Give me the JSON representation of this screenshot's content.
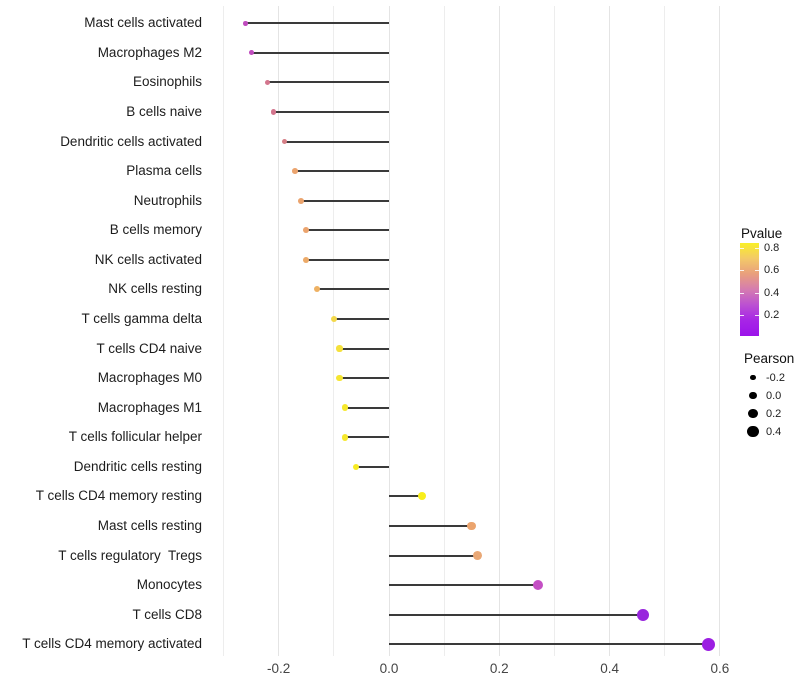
{
  "chart_data": {
    "type": "scatter",
    "subtype": "lollipop",
    "title": "",
    "xlabel": "",
    "ylabel": "",
    "xlim": [
      -0.3,
      0.65
    ],
    "grid": "on",
    "x_axis": {
      "ticks": [
        {
          "value": -0.2,
          "label": "-0.2"
        },
        {
          "value": 0.0,
          "label": "0.0"
        },
        {
          "value": 0.2,
          "label": "0.2"
        },
        {
          "value": 0.4,
          "label": "0.4"
        },
        {
          "value": 0.6,
          "label": "0.6"
        }
      ],
      "gridline_values": [
        -0.3,
        -0.2,
        -0.1,
        0.0,
        0.1,
        0.2,
        0.3,
        0.4,
        0.5,
        0.6
      ]
    },
    "rows": [
      {
        "label": "Mast cells activated",
        "pearson": -0.26,
        "pvalue_approx": 0.3,
        "color": "#c04cbe"
      },
      {
        "label": "Macrophages M2",
        "pearson": -0.25,
        "pvalue_approx": 0.3,
        "color": "#c04cbe"
      },
      {
        "label": "Eosinophils",
        "pearson": -0.22,
        "pvalue_approx": 0.4,
        "color": "#d3758d"
      },
      {
        "label": "B cells naive",
        "pearson": -0.21,
        "pvalue_approx": 0.42,
        "color": "#d3758d"
      },
      {
        "label": "Dendritic cells activated",
        "pearson": -0.19,
        "pvalue_approx": 0.45,
        "color": "#d67e86"
      },
      {
        "label": "Plasma cells",
        "pearson": -0.17,
        "pvalue_approx": 0.55,
        "color": "#eba46e"
      },
      {
        "label": "Neutrophils",
        "pearson": -0.16,
        "pvalue_approx": 0.55,
        "color": "#eba46e"
      },
      {
        "label": "B cells memory",
        "pearson": -0.15,
        "pvalue_approx": 0.55,
        "color": "#eba46e"
      },
      {
        "label": "NK cells activated",
        "pearson": -0.15,
        "pvalue_approx": 0.57,
        "color": "#ecaa69"
      },
      {
        "label": "NK cells resting",
        "pearson": -0.13,
        "pvalue_approx": 0.6,
        "color": "#eeb163"
      },
      {
        "label": "T cells gamma delta",
        "pearson": -0.1,
        "pvalue_approx": 0.7,
        "color": "#f3d84a"
      },
      {
        "label": "T cells CD4 naive",
        "pearson": -0.09,
        "pvalue_approx": 0.72,
        "color": "#f5e13c"
      },
      {
        "label": "Macrophages M0",
        "pearson": -0.09,
        "pvalue_approx": 0.74,
        "color": "#f6e631"
      },
      {
        "label": "Macrophages M1",
        "pearson": -0.08,
        "pvalue_approx": 0.75,
        "color": "#f6e82c"
      },
      {
        "label": "T cells follicular helper",
        "pearson": -0.08,
        "pvalue_approx": 0.75,
        "color": "#f6e82c"
      },
      {
        "label": "Dendritic cells resting",
        "pearson": -0.06,
        "pvalue_approx": 0.78,
        "color": "#f7eb23"
      },
      {
        "label": "T cells CD4 memory resting",
        "pearson": 0.06,
        "pvalue_approx": 0.8,
        "color": "#f8ee1b"
      },
      {
        "label": "Mast cells resting",
        "pearson": 0.15,
        "pvalue_approx": 0.55,
        "color": "#eba46e"
      },
      {
        "label": "T cells regulatory  Tregs",
        "pearson": 0.16,
        "pvalue_approx": 0.53,
        "color": "#e9a876"
      },
      {
        "label": "Monocytes",
        "pearson": 0.27,
        "pvalue_approx": 0.25,
        "color": "#c44fc4"
      },
      {
        "label": "T cells CD8",
        "pearson": 0.46,
        "pvalue_approx": 0.1,
        "color": "#9826dd"
      },
      {
        "label": "T cells CD4 memory activated",
        "pearson": 0.58,
        "pvalue_approx": 0.08,
        "color": "#9c1fe2"
      }
    ],
    "legend_pvalue": {
      "title": "Pvalue",
      "tick_labels": [
        "0.8",
        "0.6",
        "0.4",
        "0.2"
      ],
      "gradient_top_to_bottom": [
        "#f9ef28",
        "#f3c968",
        "#e99f7d",
        "#d57cb0",
        "#bb50d2",
        "#a725e6",
        "#9c13ea"
      ]
    },
    "legend_pearson": {
      "title": "Pearson",
      "items": [
        {
          "label": "-0.2",
          "value": -0.2
        },
        {
          "label": "0.0",
          "value": 0.0
        },
        {
          "label": "0.2",
          "value": 0.2
        },
        {
          "label": "0.4",
          "value": 0.4
        }
      ]
    },
    "stem_color": "#3a3a3a"
  }
}
